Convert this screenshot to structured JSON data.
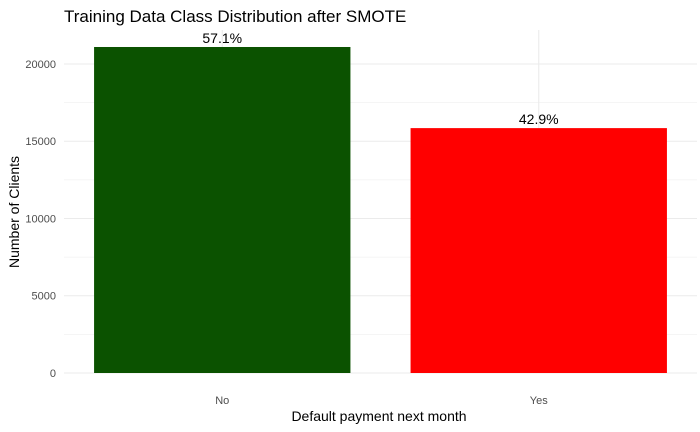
{
  "chart_data": {
    "type": "bar",
    "title": "Training Data Class Distribution after SMOTE",
    "xlabel": "Default payment next month",
    "ylabel": "Number of Clients",
    "categories": [
      "No",
      "Yes"
    ],
    "values": [
      21100,
      15850
    ],
    "data_labels": [
      "57.1%",
      "42.9%"
    ],
    "colors": [
      "#0b5200",
      "#ff0000"
    ],
    "ylim": [
      0,
      22200
    ],
    "yticks": [
      0,
      5000,
      10000,
      15000,
      20000
    ],
    "ytick_labels": [
      "0",
      "5000",
      "10000",
      "15000",
      "20000"
    ],
    "grid": true,
    "legend": "none"
  }
}
